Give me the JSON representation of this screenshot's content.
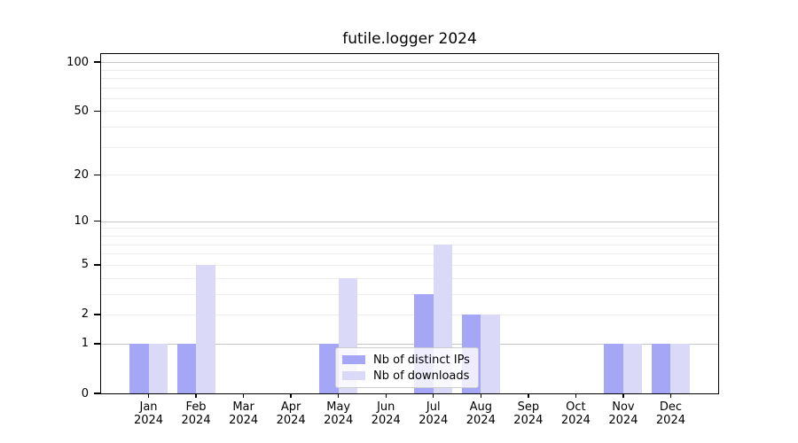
{
  "title": "futile.logger 2024",
  "chart_data": {
    "type": "bar",
    "title": "futile.logger 2024",
    "yscale": "log1p",
    "categories": [
      "Jan",
      "Feb",
      "Mar",
      "Apr",
      "May",
      "Jun",
      "Jul",
      "Aug",
      "Sep",
      "Oct",
      "Nov",
      "Dec"
    ],
    "year": "2024",
    "series": [
      {
        "name": "Nb of distinct IPs",
        "color": "#a6a6f6",
        "values": [
          1,
          1,
          0,
          0,
          1,
          0,
          3,
          2,
          0,
          0,
          1,
          1
        ]
      },
      {
        "name": "Nb of downloads",
        "color": "#dadaf8",
        "values": [
          1,
          5,
          0,
          0,
          4,
          0,
          7,
          2,
          0,
          0,
          1,
          1
        ]
      }
    ],
    "y_ticks": [
      0,
      1,
      2,
      5,
      10,
      20,
      50,
      100
    ],
    "major_gridlines": [
      1,
      10,
      100
    ],
    "minor_gridlines": [
      2,
      3,
      4,
      5,
      6,
      7,
      8,
      9,
      20,
      30,
      40,
      50,
      60,
      70,
      80,
      90
    ],
    "ylim": [
      0,
      112
    ],
    "xlabel": "",
    "ylabel": "",
    "grid": true,
    "legend_position": "lower center"
  },
  "colors": {
    "distinct_ips_bar": "#a6a6f6",
    "downloads_bar": "#dadaf8",
    "major_gridline": "#c6c6c6",
    "minor_gridline": "#ededed",
    "axis": "#000000"
  }
}
